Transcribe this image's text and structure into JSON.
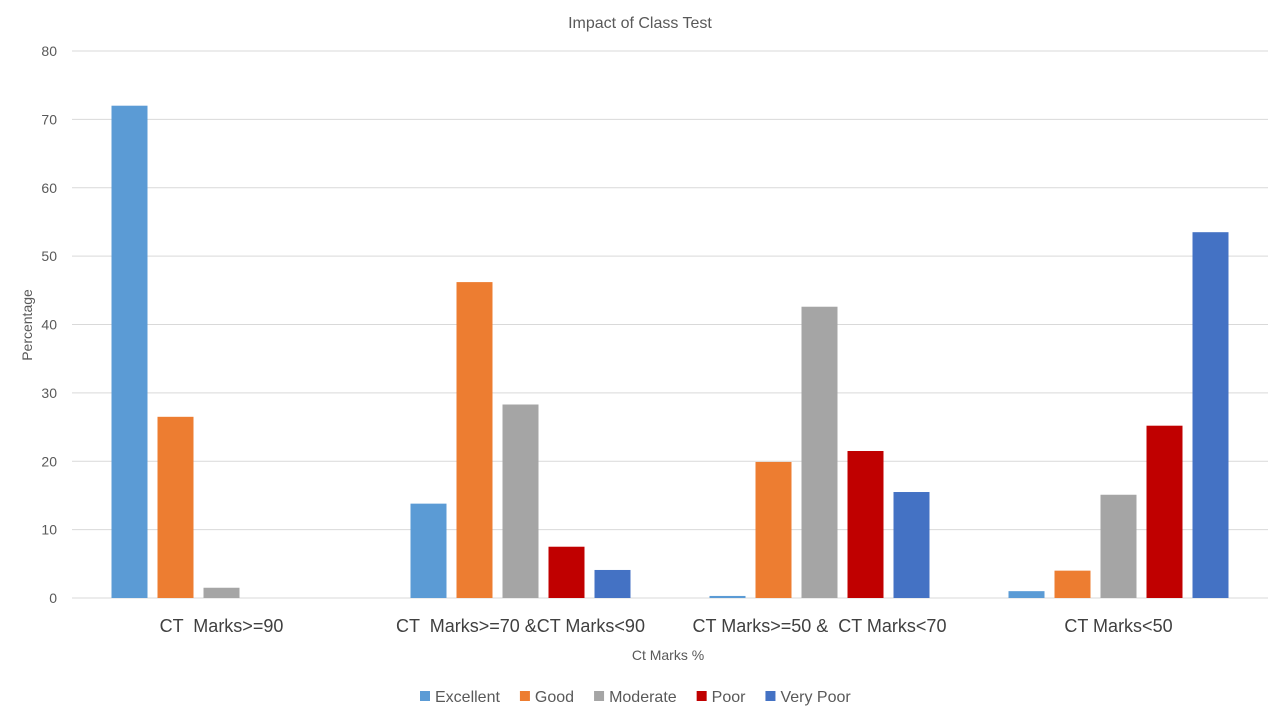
{
  "chart_data": {
    "type": "bar",
    "title": "Impact of Class Test",
    "xlabel": "Ct Marks %",
    "ylabel": "Percentage",
    "ylim": [
      0,
      80
    ],
    "yticks": [
      "0",
      "10",
      "20",
      "30",
      "40",
      "50",
      "60",
      "70",
      "80"
    ],
    "grid": true,
    "legend_position": "bottom",
    "categories": [
      "CT  Marks>=90",
      "CT  Marks>=70 &CT Marks<90",
      "CT Marks>=50 &  CT Marks<70",
      "CT Marks<50"
    ],
    "series": [
      {
        "name": "Excellent",
        "color": "#5B9BD5",
        "values": [
          72,
          13.8,
          0.3,
          1.0
        ]
      },
      {
        "name": "Good",
        "color": "#ED7D31",
        "values": [
          26.5,
          46.2,
          19.9,
          4.0
        ]
      },
      {
        "name": "Moderate",
        "color": "#A5A5A5",
        "values": [
          1.5,
          28.3,
          42.6,
          15.1
        ]
      },
      {
        "name": "Poor",
        "color": "#C00000",
        "values": [
          0,
          7.5,
          21.5,
          25.2
        ]
      },
      {
        "name": "Very Poor",
        "color": "#4472C4",
        "values": [
          0,
          4.1,
          15.5,
          53.5
        ]
      }
    ]
  }
}
